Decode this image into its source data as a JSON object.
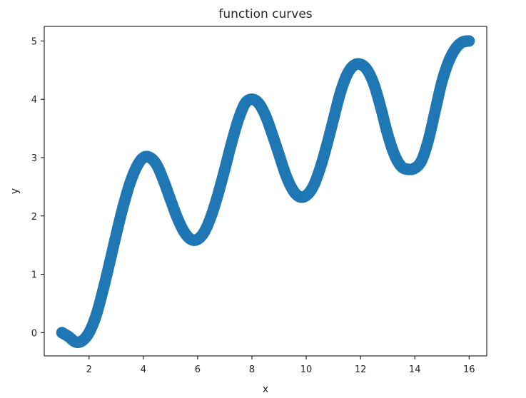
{
  "chart_data": {
    "type": "scatter",
    "title": "function curves",
    "xlabel": "x",
    "ylabel": "y",
    "xlim": [
      0.35,
      16.65
    ],
    "ylim": [
      -0.4,
      5.25
    ],
    "xticks": [
      2,
      4,
      6,
      8,
      10,
      12,
      14,
      16
    ],
    "yticks": [
      0,
      1,
      2,
      3,
      4,
      5
    ],
    "grid": false,
    "color": "#1f77b4",
    "series": [
      {
        "points": [
          [
            1.0,
            0.0
          ],
          [
            1.25,
            -0.07
          ],
          [
            1.5,
            -0.16
          ],
          [
            1.75,
            -0.14
          ],
          [
            2.0,
            0.0
          ],
          [
            2.25,
            0.28
          ],
          [
            2.5,
            0.7
          ],
          [
            2.75,
            1.18
          ],
          [
            3.0,
            1.68
          ],
          [
            3.25,
            2.15
          ],
          [
            3.5,
            2.55
          ],
          [
            3.75,
            2.84
          ],
          [
            4.0,
            3.0
          ],
          [
            4.25,
            3.0
          ],
          [
            4.5,
            2.87
          ],
          [
            4.75,
            2.6
          ],
          [
            5.0,
            2.28
          ],
          [
            5.25,
            1.97
          ],
          [
            5.5,
            1.73
          ],
          [
            5.75,
            1.6
          ],
          [
            6.0,
            1.6
          ],
          [
            6.25,
            1.73
          ],
          [
            6.5,
            2.0
          ],
          [
            6.75,
            2.37
          ],
          [
            7.0,
            2.8
          ],
          [
            7.25,
            3.25
          ],
          [
            7.5,
            3.65
          ],
          [
            7.75,
            3.93
          ],
          [
            8.0,
            4.0
          ],
          [
            8.25,
            3.93
          ],
          [
            8.5,
            3.72
          ],
          [
            8.75,
            3.4
          ],
          [
            9.0,
            3.05
          ],
          [
            9.25,
            2.7
          ],
          [
            9.5,
            2.45
          ],
          [
            9.75,
            2.33
          ],
          [
            10.0,
            2.35
          ],
          [
            10.25,
            2.5
          ],
          [
            10.5,
            2.8
          ],
          [
            10.75,
            3.2
          ],
          [
            11.0,
            3.65
          ],
          [
            11.25,
            4.1
          ],
          [
            11.5,
            4.42
          ],
          [
            11.75,
            4.58
          ],
          [
            12.0,
            4.6
          ],
          [
            12.25,
            4.5
          ],
          [
            12.5,
            4.25
          ],
          [
            12.75,
            3.85
          ],
          [
            13.0,
            3.4
          ],
          [
            13.25,
            3.05
          ],
          [
            13.5,
            2.85
          ],
          [
            13.75,
            2.8
          ],
          [
            14.0,
            2.82
          ],
          [
            14.25,
            2.95
          ],
          [
            14.5,
            3.3
          ],
          [
            14.75,
            3.8
          ],
          [
            15.0,
            4.3
          ],
          [
            15.25,
            4.65
          ],
          [
            15.5,
            4.87
          ],
          [
            15.75,
            4.98
          ],
          [
            16.0,
            5.0
          ]
        ]
      }
    ]
  }
}
